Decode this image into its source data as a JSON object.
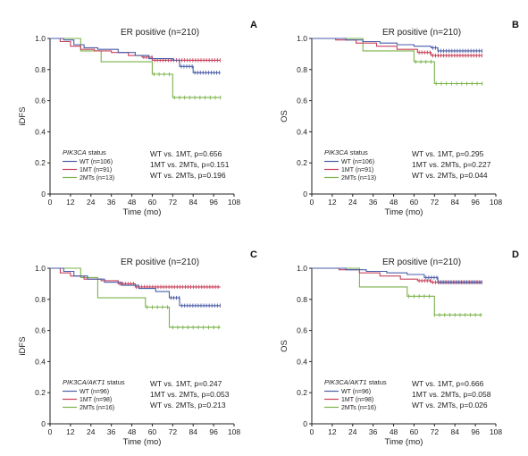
{
  "colors": {
    "WT": "#4a5ea8",
    "1MT": "#c8405a",
    "2MTs": "#7ab24a"
  },
  "chart_data": [
    {
      "type": "line",
      "panel": "A",
      "title": "ER positive (n=210)",
      "xlabel": "Time (mo)",
      "ylabel": "iDFS",
      "xlim": [
        0,
        108
      ],
      "ylim": [
        0,
        1.0
      ],
      "xticks": [
        "0",
        "12",
        "24",
        "36",
        "48",
        "60",
        "72",
        "84",
        "96",
        "108"
      ],
      "yticks": [
        "0",
        "0.2",
        "0.4",
        "0.6",
        "0.8",
        "1.0"
      ],
      "legend_title_italic": "PIK3CA",
      "legend_title_rest": " status",
      "series": [
        {
          "name": "WT (n=106)",
          "key": "WT",
          "points": [
            [
              0,
              1
            ],
            [
              8,
              0.99
            ],
            [
              14,
              0.96
            ],
            [
              20,
              0.94
            ],
            [
              28,
              0.93
            ],
            [
              40,
              0.91
            ],
            [
              50,
              0.89
            ],
            [
              58,
              0.87
            ],
            [
              68,
              0.87
            ],
            [
              72,
              0.86
            ],
            [
              76,
              0.82
            ],
            [
              84,
              0.78
            ],
            [
              100,
              0.78
            ]
          ]
        },
        {
          "name": "1MT (n=91)",
          "key": "1MT",
          "points": [
            [
              0,
              1
            ],
            [
              6,
              0.98
            ],
            [
              12,
              0.95
            ],
            [
              18,
              0.93
            ],
            [
              26,
              0.92
            ],
            [
              36,
              0.91
            ],
            [
              46,
              0.89
            ],
            [
              54,
              0.88
            ],
            [
              60,
              0.86
            ],
            [
              100,
              0.86
            ]
          ]
        },
        {
          "name": "2MTs (n=13)",
          "key": "2MTs",
          "points": [
            [
              0,
              1
            ],
            [
              18,
              0.92
            ],
            [
              30,
              0.85
            ],
            [
              60,
              0.77
            ],
            [
              72,
              0.62
            ],
            [
              100,
              0.62
            ]
          ]
        }
      ],
      "pvalues": [
        "WT vs. 1MT, p=0.656",
        "1MT vs. 2MTs, p=0.151",
        "WT vs. 2MTs, p=0.196"
      ]
    },
    {
      "type": "line",
      "panel": "B",
      "title": "ER positive (n=210)",
      "xlabel": "Time (mo)",
      "ylabel": "OS",
      "xlim": [
        0,
        108
      ],
      "ylim": [
        0,
        1.0
      ],
      "xticks": [
        "0",
        "12",
        "24",
        "36",
        "48",
        "60",
        "72",
        "84",
        "96",
        "108"
      ],
      "yticks": [
        "0",
        "0.2",
        "0.4",
        "0.6",
        "0.8",
        "1.0"
      ],
      "legend_title_italic": "PIK3CA",
      "legend_title_rest": " status",
      "series": [
        {
          "name": "WT (n=106)",
          "key": "WT",
          "points": [
            [
              0,
              1
            ],
            [
              20,
              0.99
            ],
            [
              30,
              0.98
            ],
            [
              40,
              0.97
            ],
            [
              50,
              0.96
            ],
            [
              60,
              0.95
            ],
            [
              70,
              0.94
            ],
            [
              74,
              0.92
            ],
            [
              100,
              0.92
            ]
          ]
        },
        {
          "name": "1MT (n=91)",
          "key": "1MT",
          "points": [
            [
              0,
              1
            ],
            [
              14,
              0.99
            ],
            [
              26,
              0.97
            ],
            [
              38,
              0.95
            ],
            [
              50,
              0.93
            ],
            [
              62,
              0.91
            ],
            [
              70,
              0.89
            ],
            [
              100,
              0.89
            ]
          ]
        },
        {
          "name": "2MTs (n=13)",
          "key": "2MTs",
          "points": [
            [
              0,
              1
            ],
            [
              30,
              0.92
            ],
            [
              60,
              0.85
            ],
            [
              72,
              0.71
            ],
            [
              100,
              0.71
            ]
          ]
        }
      ],
      "pvalues": [
        "WT vs. 1MT, p=0.295",
        "1MT vs. 2MTs, p=0.227",
        "WT vs. 2MTs, p=0.044"
      ]
    },
    {
      "type": "line",
      "panel": "C",
      "title": "ER positive (n=210)",
      "xlabel": "Time (mo)",
      "ylabel": "iDFS",
      "xlim": [
        0,
        108
      ],
      "ylim": [
        0,
        1.0
      ],
      "xticks": [
        "0",
        "12",
        "24",
        "36",
        "48",
        "60",
        "72",
        "84",
        "96",
        "108"
      ],
      "yticks": [
        "0",
        "0.2",
        "0.4",
        "0.6",
        "0.8",
        "1.0"
      ],
      "legend_title_italic": "PIK3CA/AKT1",
      "legend_title_rest": " status",
      "series": [
        {
          "name": "WT (n=96)",
          "key": "WT",
          "points": [
            [
              0,
              1
            ],
            [
              8,
              0.98
            ],
            [
              14,
              0.95
            ],
            [
              22,
              0.93
            ],
            [
              32,
              0.91
            ],
            [
              42,
              0.89
            ],
            [
              52,
              0.87
            ],
            [
              62,
              0.85
            ],
            [
              70,
              0.81
            ],
            [
              76,
              0.76
            ],
            [
              100,
              0.76
            ]
          ]
        },
        {
          "name": "1MT (n=98)",
          "key": "1MT",
          "points": [
            [
              0,
              1
            ],
            [
              6,
              0.97
            ],
            [
              12,
              0.95
            ],
            [
              20,
              0.93
            ],
            [
              30,
              0.92
            ],
            [
              40,
              0.9
            ],
            [
              50,
              0.88
            ],
            [
              100,
              0.88
            ]
          ]
        },
        {
          "name": "2MTs (n=16)",
          "key": "2MTs",
          "points": [
            [
              0,
              1
            ],
            [
              18,
              0.94
            ],
            [
              28,
              0.81
            ],
            [
              56,
              0.75
            ],
            [
              70,
              0.62
            ],
            [
              100,
              0.62
            ]
          ]
        }
      ],
      "pvalues": [
        "WT vs. 1MT, p=0.247",
        "1MT vs. 2MTs, p=0.053",
        "WT vs. 2MTs, p=0.213"
      ]
    },
    {
      "type": "line",
      "panel": "D",
      "title": "ER positive (n=210)",
      "xlabel": "Time (mo)",
      "ylabel": "OS",
      "xlim": [
        0,
        108
      ],
      "ylim": [
        0,
        1.0
      ],
      "xticks": [
        "0",
        "12",
        "24",
        "36",
        "48",
        "60",
        "72",
        "84",
        "96",
        "108"
      ],
      "yticks": [
        "0",
        "0.2",
        "0.4",
        "0.6",
        "0.8",
        "1.0"
      ],
      "legend_title_italic": "PIK3CA/AKT1",
      "legend_title_rest": " status",
      "series": [
        {
          "name": "WT (n=96)",
          "key": "WT",
          "points": [
            [
              0,
              1
            ],
            [
              20,
              0.99
            ],
            [
              32,
              0.98
            ],
            [
              44,
              0.97
            ],
            [
              56,
              0.96
            ],
            [
              66,
              0.94
            ],
            [
              74,
              0.91
            ],
            [
              100,
              0.91
            ]
          ]
        },
        {
          "name": "1MT (n=98)",
          "key": "1MT",
          "points": [
            [
              0,
              1
            ],
            [
              16,
              0.99
            ],
            [
              28,
              0.97
            ],
            [
              40,
              0.95
            ],
            [
              52,
              0.93
            ],
            [
              62,
              0.92
            ],
            [
              70,
              0.91
            ],
            [
              100,
              0.91
            ]
          ]
        },
        {
          "name": "2MTs (n=16)",
          "key": "2MTs",
          "points": [
            [
              0,
              1
            ],
            [
              28,
              0.88
            ],
            [
              56,
              0.82
            ],
            [
              72,
              0.7
            ],
            [
              100,
              0.7
            ]
          ]
        }
      ],
      "pvalues": [
        "WT vs. 1MT, p=0.666",
        "1MT vs. 2MTs, p=0.058",
        "WT vs. 2MTs, p=0.026"
      ]
    }
  ]
}
